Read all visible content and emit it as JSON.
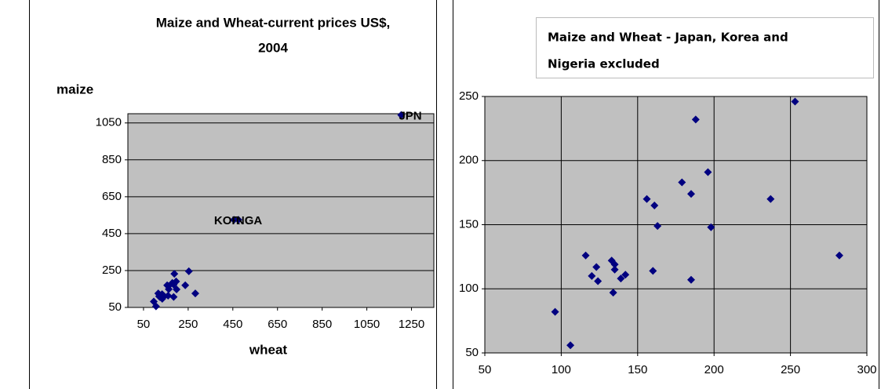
{
  "chart_data": [
    {
      "type": "scatter",
      "title": [
        "Maize and Wheat-current prices US$,",
        "2004"
      ],
      "y_label": "maize",
      "x_label": "wheat",
      "xlim": [
        -20,
        1350
      ],
      "xticks": [
        50,
        250,
        450,
        650,
        850,
        1050,
        1250
      ],
      "ylim": [
        50,
        1100
      ],
      "yticks": [
        50,
        250,
        450,
        650,
        850,
        1050
      ],
      "grid": "y",
      "color": "#000080",
      "x": [
        96,
        106,
        116,
        120,
        123,
        124,
        133,
        135,
        135,
        134,
        139,
        142,
        163,
        156,
        161,
        160,
        179,
        185,
        185,
        188,
        196,
        198,
        237,
        253,
        282
      ],
      "y": [
        82,
        56,
        126,
        110,
        117,
        106,
        122,
        119,
        115,
        97,
        108,
        111,
        149,
        170,
        165,
        114,
        183,
        174,
        107,
        232,
        191,
        148,
        170,
        246,
        126
      ],
      "labeled_points": [
        {
          "label": "JPN",
          "x": 1204,
          "y": 1093
        },
        {
          "label": "KOR",
          "x": 455,
          "y": 525
        },
        {
          "label": "NGA",
          "x": 475,
          "y": 525
        }
      ]
    },
    {
      "type": "scatter",
      "title": [
        "Maize and Wheat - Japan, Korea and",
        "Nigeria excluded"
      ],
      "xlim": [
        50,
        300
      ],
      "xticks": [
        50,
        100,
        150,
        200,
        250,
        300
      ],
      "ylim": [
        50,
        250
      ],
      "yticks": [
        50,
        100,
        150,
        200,
        250
      ],
      "grid": "xy",
      "color": "#000080",
      "x": [
        96,
        106,
        116,
        120,
        123,
        124,
        133,
        135,
        135,
        134,
        139,
        142,
        163,
        156,
        161,
        160,
        179,
        185,
        185,
        188,
        196,
        198,
        237,
        253,
        282
      ],
      "y": [
        82,
        56,
        126,
        110,
        117,
        106,
        122,
        119,
        115,
        97,
        108,
        111,
        149,
        170,
        165,
        114,
        183,
        174,
        107,
        232,
        191,
        148,
        170,
        246,
        126
      ]
    }
  ]
}
